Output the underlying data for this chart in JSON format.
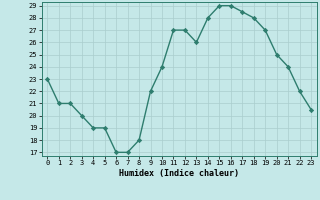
{
  "x": [
    0,
    1,
    2,
    3,
    4,
    5,
    6,
    7,
    8,
    9,
    10,
    11,
    12,
    13,
    14,
    15,
    16,
    17,
    18,
    19,
    20,
    21,
    22,
    23
  ],
  "y": [
    23,
    21,
    21,
    20,
    19,
    19,
    17,
    17,
    18,
    22,
    24,
    27,
    27,
    26,
    28,
    29,
    29,
    28.5,
    28,
    27,
    25,
    24,
    22,
    20.5
  ],
  "line_color": "#2e7d6e",
  "marker": "D",
  "marker_size": 2.2,
  "bg_color": "#c5e8e8",
  "grid_color": "#aacece",
  "xlabel": "Humidex (Indice chaleur)",
  "ylim_min": 17,
  "ylim_max": 29,
  "yticks": [
    17,
    18,
    19,
    20,
    21,
    22,
    23,
    24,
    25,
    26,
    27,
    28,
    29
  ],
  "xticks": [
    0,
    1,
    2,
    3,
    4,
    5,
    6,
    7,
    8,
    9,
    10,
    11,
    12,
    13,
    14,
    15,
    16,
    17,
    18,
    19,
    20,
    21,
    22,
    23
  ],
  "xlim_min": -0.5,
  "xlim_max": 23.5
}
